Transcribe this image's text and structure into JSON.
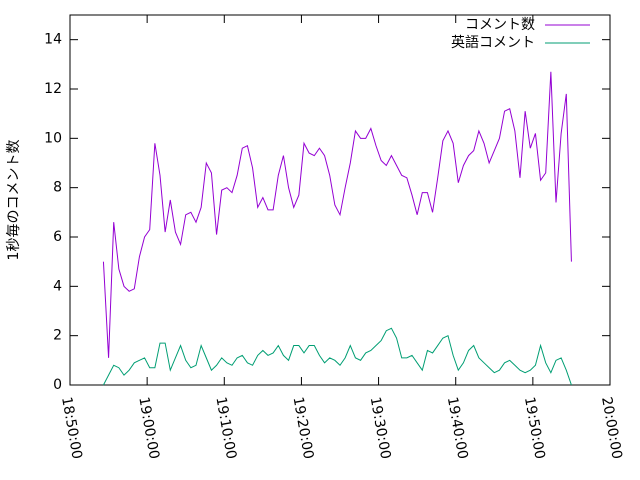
{
  "chart_data": {
    "type": "line",
    "ylabel": "1秒毎のコメント数",
    "x": [
      "18:54:20",
      "18:55:00",
      "18:55:40",
      "18:56:20",
      "18:57:00",
      "18:57:40",
      "18:58:20",
      "18:59:00",
      "18:59:40",
      "19:00:20",
      "19:01:00",
      "19:01:40",
      "19:02:20",
      "19:03:00",
      "19:03:40",
      "19:04:20",
      "19:05:00",
      "19:05:40",
      "19:06:20",
      "19:07:00",
      "19:07:40",
      "19:08:20",
      "19:09:00",
      "19:09:40",
      "19:10:20",
      "19:11:00",
      "19:11:40",
      "19:12:20",
      "19:13:00",
      "19:13:40",
      "19:14:20",
      "19:15:00",
      "19:15:40",
      "19:16:20",
      "19:17:00",
      "19:17:40",
      "19:18:20",
      "19:19:00",
      "19:19:40",
      "19:20:20",
      "19:21:00",
      "19:21:40",
      "19:22:20",
      "19:23:00",
      "19:23:40",
      "19:24:20",
      "19:25:00",
      "19:25:40",
      "19:26:20",
      "19:27:00",
      "19:27:40",
      "19:28:20",
      "19:29:00",
      "19:29:40",
      "19:30:20",
      "19:31:00",
      "19:31:40",
      "19:32:20",
      "19:33:00",
      "19:33:40",
      "19:34:20",
      "19:35:00",
      "19:35:40",
      "19:36:20",
      "19:37:00",
      "19:37:40",
      "19:38:20",
      "19:39:00",
      "19:39:40",
      "19:40:20",
      "19:41:00",
      "19:41:40",
      "19:42:20",
      "19:43:00",
      "19:43:40",
      "19:44:20",
      "19:45:00",
      "19:45:40",
      "19:46:20",
      "19:47:00",
      "19:47:40",
      "19:48:20",
      "19:49:00",
      "19:49:40",
      "19:50:20",
      "19:51:00",
      "19:51:40",
      "19:52:20",
      "19:53:00",
      "19:53:40",
      "19:54:20",
      "19:55:00"
    ],
    "series": [
      {
        "name": "コメント数",
        "color": "#9400d3",
        "values": [
          5,
          1.1,
          6.6,
          4.7,
          4,
          3.8,
          3.9,
          5.2,
          6,
          6.3,
          9.8,
          8.5,
          6.2,
          7.5,
          6.2,
          5.7,
          6.9,
          7,
          6.6,
          7.2,
          9,
          8.6,
          6.1,
          7.9,
          8,
          7.8,
          8.5,
          9.6,
          9.7,
          8.8,
          7.2,
          7.6,
          7.1,
          7.1,
          8.5,
          9.3,
          8,
          7.2,
          7.7,
          9.8,
          9.4,
          9.3,
          9.6,
          9.3,
          8.5,
          7.3,
          6.9,
          8,
          9,
          10.3,
          10,
          10,
          10.4,
          9.7,
          9.1,
          8.9,
          9.3,
          8.9,
          8.5,
          8.4,
          7.7,
          6.9,
          7.8,
          7.8,
          7,
          8.4,
          9.9,
          10.3,
          9.8,
          8.2,
          8.9,
          9.3,
          9.5,
          10.3,
          9.8,
          9,
          9.5,
          10,
          11.1,
          11.2,
          10.3,
          8.4,
          11.1,
          9.6,
          10.2,
          8.3,
          8.6,
          12.7,
          7.4,
          10.2,
          11.8,
          5
        ]
      },
      {
        "name": "英語コメント",
        "color": "#009e73",
        "values": [
          0,
          0.4,
          0.8,
          0.7,
          0.4,
          0.6,
          0.9,
          1,
          1.1,
          0.7,
          0.7,
          1.7,
          1.7,
          0.6,
          1.1,
          1.6,
          1,
          0.7,
          0.8,
          1.6,
          1.1,
          0.6,
          0.8,
          1.1,
          0.9,
          0.8,
          1.1,
          1.2,
          0.9,
          0.8,
          1.2,
          1.4,
          1.2,
          1.3,
          1.6,
          1.2,
          1,
          1.6,
          1.6,
          1.3,
          1.6,
          1.6,
          1.2,
          0.9,
          1.1,
          1,
          0.8,
          1.1,
          1.6,
          1.1,
          1,
          1.3,
          1.4,
          1.6,
          1.8,
          2.2,
          2.3,
          1.9,
          1.1,
          1.1,
          1.2,
          0.9,
          0.6,
          1.4,
          1.3,
          1.6,
          1.9,
          2,
          1.2,
          0.6,
          0.9,
          1.4,
          1.6,
          1.1,
          0.9,
          0.7,
          0.5,
          0.6,
          0.9,
          1,
          0.8,
          0.6,
          0.5,
          0.6,
          0.8,
          1.6,
          0.9,
          0.5,
          1,
          1.1,
          0.6,
          0
        ]
      }
    ],
    "xlim": [
      "18:50:00",
      "20:00:00"
    ],
    "xticks": [
      "18:50:00",
      "19:00:00",
      "19:10:00",
      "19:20:00",
      "19:30:00",
      "19:40:00",
      "19:50:00",
      "20:00:00"
    ],
    "ylim": [
      0,
      15
    ],
    "yticks": [
      0,
      2,
      4,
      6,
      8,
      10,
      12,
      14
    ],
    "legend": "top-right"
  }
}
